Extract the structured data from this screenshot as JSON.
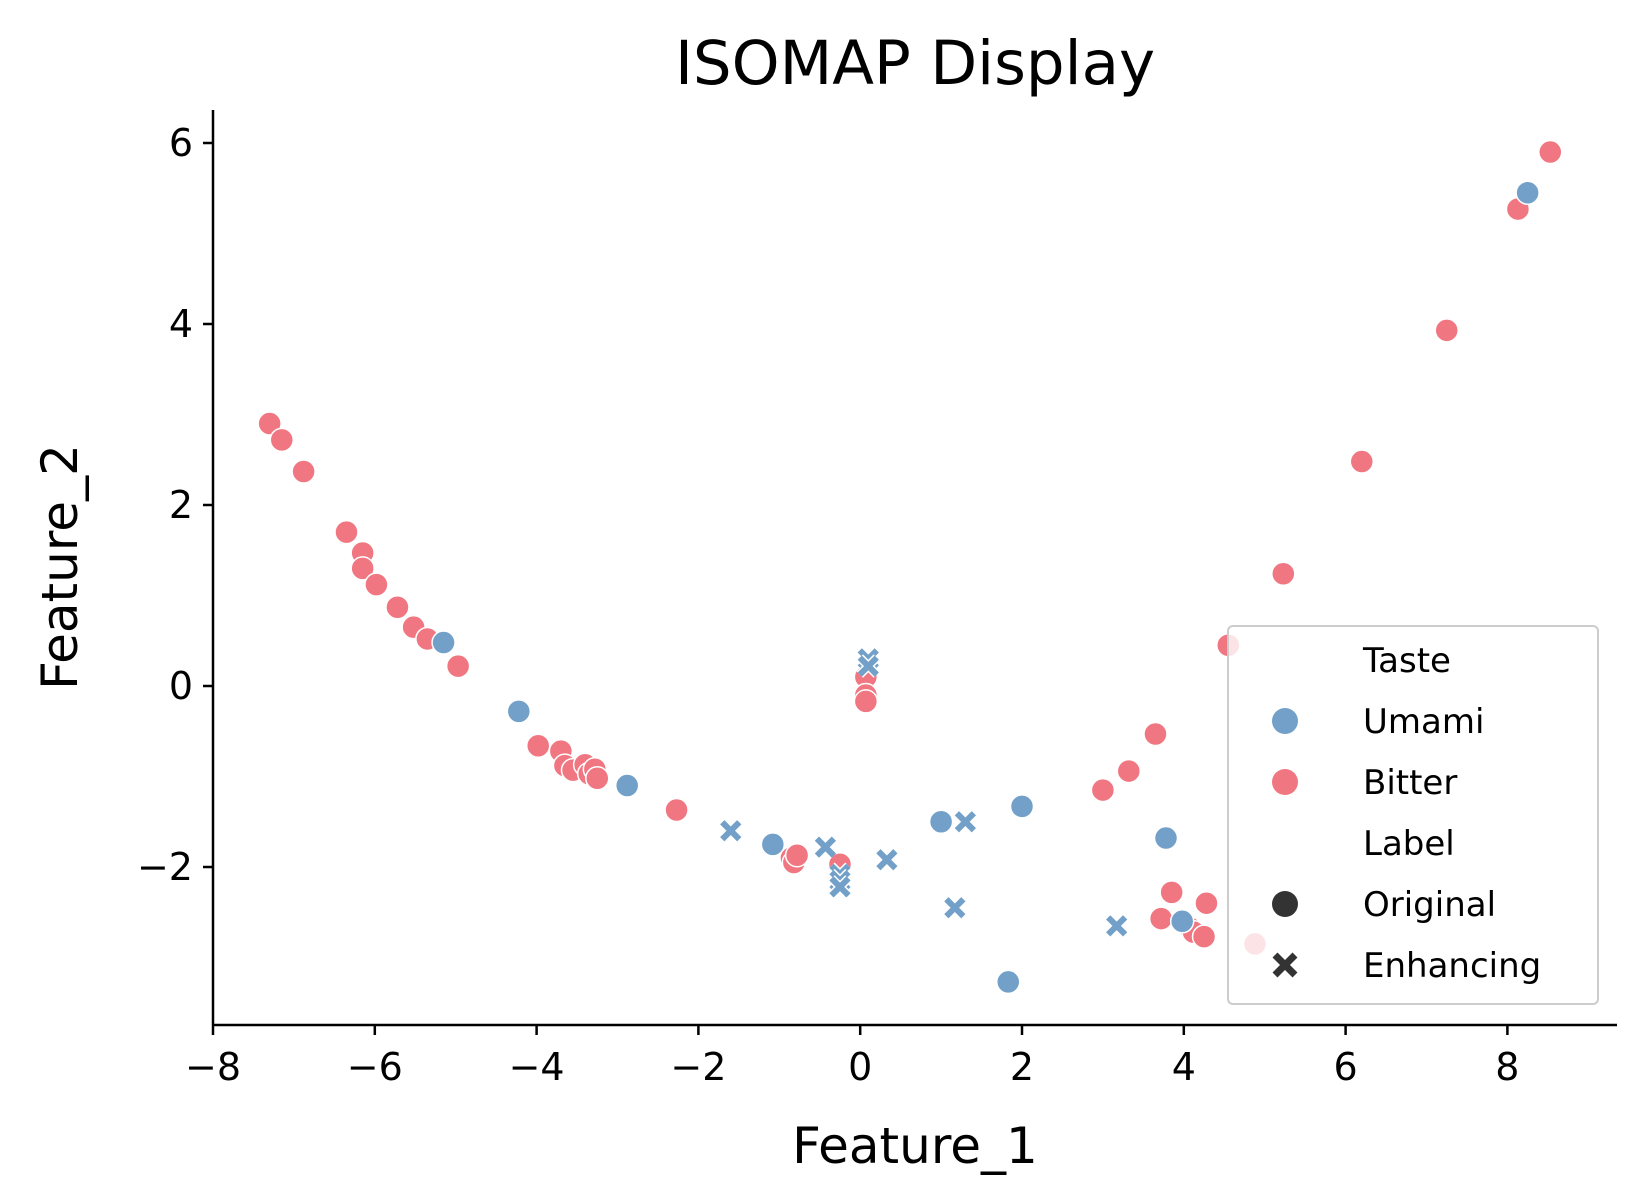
{
  "chart_data": {
    "type": "scatter",
    "title": "ISOMAP Display",
    "xlabel": "Feature_1",
    "ylabel": "Feature_2",
    "xlim": [
      -8.0,
      9.3
    ],
    "ylim": [
      -3.7,
      6.4
    ],
    "xticks": [
      -8,
      -6,
      -4,
      -2,
      0,
      2,
      4,
      6,
      8
    ],
    "yticks": [
      -2,
      0,
      2,
      4,
      6
    ],
    "grid": false,
    "legend": {
      "placement": "lower-right",
      "hue_title": "Taste",
      "style_title": "Label",
      "entries": [
        {
          "label": "Umami",
          "kind": "hue",
          "color": "#72a0c8"
        },
        {
          "label": "Bitter",
          "kind": "hue",
          "color": "#f07782"
        },
        {
          "label": "Original",
          "kind": "style",
          "marker": "circle"
        },
        {
          "label": "Enhancing",
          "kind": "style",
          "marker": "x"
        }
      ]
    },
    "colors": {
      "Umami": "#72a0c8",
      "Bitter": "#f07782",
      "legend_marker": "#333333"
    },
    "series": [
      {
        "name": "Bitter",
        "label": "Original",
        "marker": "circle",
        "points": [
          [
            -7.3,
            2.9
          ],
          [
            -7.15,
            2.72
          ],
          [
            -6.88,
            2.37
          ],
          [
            -6.35,
            1.7
          ],
          [
            -6.15,
            1.47
          ],
          [
            -6.15,
            1.3
          ],
          [
            -5.98,
            1.12
          ],
          [
            -5.72,
            0.87
          ],
          [
            -5.52,
            0.65
          ],
          [
            -5.35,
            0.52
          ],
          [
            -4.97,
            0.22
          ],
          [
            -3.98,
            -0.66
          ],
          [
            -3.7,
            -0.72
          ],
          [
            -3.65,
            -0.88
          ],
          [
            -3.55,
            -0.93
          ],
          [
            -3.4,
            -0.87
          ],
          [
            -3.35,
            -0.97
          ],
          [
            -3.28,
            -0.92
          ],
          [
            -3.25,
            -1.02
          ],
          [
            -2.27,
            -1.37
          ],
          [
            -0.85,
            -1.9
          ],
          [
            -0.82,
            -1.95
          ],
          [
            -0.78,
            -1.87
          ],
          [
            -0.25,
            -1.97
          ],
          [
            0.07,
            0.1
          ],
          [
            0.07,
            -0.1
          ],
          [
            0.07,
            -0.17
          ],
          [
            3.0,
            -1.15
          ],
          [
            3.32,
            -0.94
          ],
          [
            3.65,
            -0.53
          ],
          [
            3.72,
            -2.57
          ],
          [
            3.85,
            -2.28
          ],
          [
            4.08,
            -2.68
          ],
          [
            4.12,
            -2.72
          ],
          [
            4.25,
            -2.77
          ],
          [
            4.28,
            -2.4
          ],
          [
            4.55,
            0.45
          ],
          [
            4.88,
            -2.85
          ],
          [
            5.23,
            1.24
          ],
          [
            6.2,
            2.48
          ],
          [
            7.25,
            3.93
          ],
          [
            8.13,
            5.27
          ],
          [
            8.53,
            5.9
          ]
        ]
      },
      {
        "name": "Umami",
        "label": "Original",
        "marker": "circle",
        "points": [
          [
            -5.15,
            0.48
          ],
          [
            -4.22,
            -0.28
          ],
          [
            -2.88,
            -1.1
          ],
          [
            -1.08,
            -1.75
          ],
          [
            1.0,
            -1.5
          ],
          [
            1.83,
            -3.27
          ],
          [
            2.0,
            -1.33
          ],
          [
            3.78,
            -1.68
          ],
          [
            3.98,
            -2.6
          ],
          [
            8.25,
            5.45
          ]
        ]
      },
      {
        "name": "Umami",
        "label": "Enhancing",
        "marker": "x",
        "points": [
          [
            -1.6,
            -1.6
          ],
          [
            -0.43,
            -1.78
          ],
          [
            -0.25,
            -2.08
          ],
          [
            -0.25,
            -2.15
          ],
          [
            -0.25,
            -2.22
          ],
          [
            0.1,
            0.3
          ],
          [
            0.1,
            0.22
          ],
          [
            0.33,
            -1.92
          ],
          [
            1.17,
            -2.45
          ],
          [
            1.3,
            -1.5
          ],
          [
            3.17,
            -2.65
          ]
        ]
      }
    ]
  }
}
